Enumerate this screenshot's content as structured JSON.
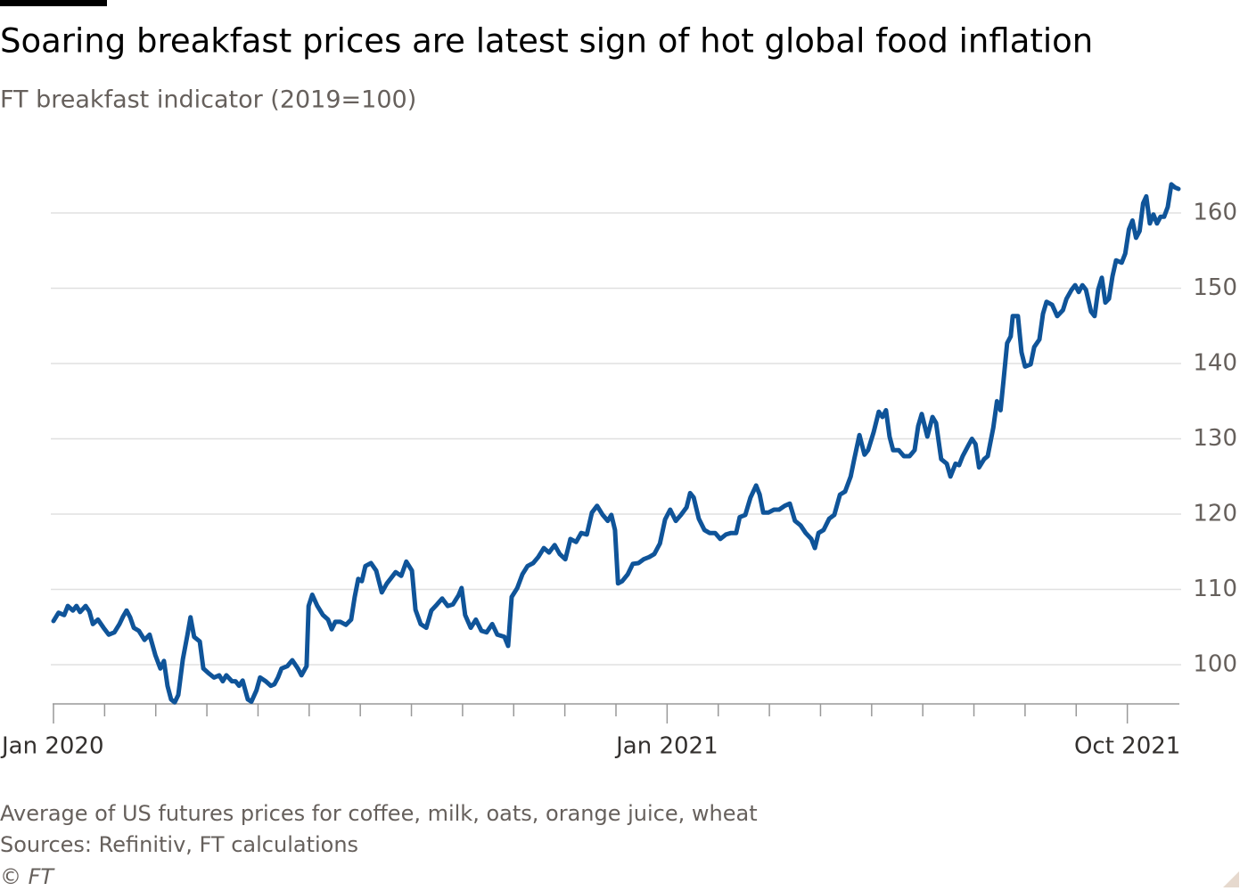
{
  "chart_data": {
    "type": "line",
    "title": "Soaring breakfast prices are latest sign of hot global food inflation",
    "subtitle": "FT breakfast indicator (2019=100)",
    "notes": [
      "Average of US futures prices for coffee, milk, oats, orange juice, wheat",
      "Sources: Refinitiv, FT calculations"
    ],
    "credit": "© FT",
    "color": "#0f5499",
    "grid": true,
    "ylim": [
      94.8,
      165
    ],
    "yticks": [
      100,
      110,
      120,
      130,
      140,
      150,
      160
    ],
    "xlim": [
      0,
      22
    ],
    "xticks": [
      {
        "value": 0,
        "label": "Jan 2020"
      },
      {
        "value": 1,
        "label": null
      },
      {
        "value": 2,
        "label": null
      },
      {
        "value": 3,
        "label": null
      },
      {
        "value": 4,
        "label": null
      },
      {
        "value": 5,
        "label": null
      },
      {
        "value": 6,
        "label": null
      },
      {
        "value": 7,
        "label": null
      },
      {
        "value": 8,
        "label": null
      },
      {
        "value": 9,
        "label": null
      },
      {
        "value": 10,
        "label": null
      },
      {
        "value": 11,
        "label": null
      },
      {
        "value": 12,
        "label": "Jan 2021"
      },
      {
        "value": 13,
        "label": null
      },
      {
        "value": 14,
        "label": null
      },
      {
        "value": 15,
        "label": null
      },
      {
        "value": 16,
        "label": null
      },
      {
        "value": 17,
        "label": null
      },
      {
        "value": 18,
        "label": null
      },
      {
        "value": 19,
        "label": null
      },
      {
        "value": 20,
        "label": null
      },
      {
        "value": 21,
        "label": "Oct 2021"
      }
    ],
    "x": [
      0,
      0.1,
      0.21,
      0.28,
      0.38,
      0.45,
      0.52,
      0.63,
      0.7,
      0.77,
      0.87,
      0.98,
      1.08,
      1.19,
      1.29,
      1.36,
      1.43,
      1.5,
      1.57,
      1.67,
      1.78,
      1.88,
      1.99,
      2.09,
      2.16,
      2.23,
      2.3,
      2.37,
      2.44,
      2.53,
      2.62,
      2.68,
      2.75,
      2.86,
      2.93,
      3.03,
      3.14,
      3.24,
      3.31,
      3.38,
      3.49,
      3.56,
      3.63,
      3.7,
      3.8,
      3.87,
      3.97,
      4.04,
      4.15,
      4.25,
      4.32,
      4.39,
      4.46,
      4.57,
      4.67,
      4.78,
      4.85,
      4.95,
      4.99,
      5.06,
      5.16,
      5.27,
      5.37,
      5.44,
      5.51,
      5.61,
      5.72,
      5.82,
      5.89,
      5.96,
      6.03,
      6.1,
      6.21,
      6.31,
      6.42,
      6.52,
      6.59,
      6.69,
      6.8,
      6.9,
      7.01,
      7.08,
      7.18,
      7.29,
      7.39,
      7.5,
      7.6,
      7.71,
      7.81,
      7.92,
      7.98,
      8.05,
      8.16,
      8.26,
      8.37,
      8.47,
      8.58,
      8.68,
      8.82,
      8.89,
      8.96,
      9.07,
      9.17,
      9.27,
      9.38,
      9.48,
      9.59,
      9.69,
      9.8,
      9.9,
      10.01,
      10.11,
      10.22,
      10.32,
      10.43,
      10.53,
      10.63,
      10.74,
      10.84,
      10.91,
      10.98,
      11.04,
      11.12,
      11.23,
      11.33,
      11.44,
      11.54,
      11.65,
      11.75,
      11.86,
      11.96,
      12.06,
      12.17,
      12.27,
      12.38,
      12.45,
      12.52,
      12.62,
      12.73,
      12.83,
      12.94,
      13.04,
      13.15,
      13.25,
      13.35,
      13.42,
      13.53,
      13.63,
      13.74,
      13.81,
      13.88,
      13.98,
      14.09,
      14.19,
      14.3,
      14.4,
      14.5,
      14.61,
      14.71,
      14.82,
      14.89,
      14.96,
      15.06,
      15.17,
      15.27,
      15.38,
      15.48,
      15.59,
      15.66,
      15.76,
      15.86,
      15.93,
      16.04,
      16.14,
      16.21,
      16.28,
      16.35,
      16.42,
      16.53,
      16.63,
      16.74,
      16.84,
      16.91,
      16.98,
      17.09,
      17.19,
      17.26,
      17.36,
      17.47,
      17.54,
      17.64,
      17.71,
      17.78,
      17.89,
      17.96,
      18.03,
      18.1,
      18.2,
      18.27,
      18.38,
      18.45,
      18.52,
      18.58,
      18.65,
      18.72,
      18.76,
      18.86,
      18.93,
      19.0,
      19.11,
      19.18,
      19.28,
      19.35,
      19.42,
      19.53,
      19.63,
      19.74,
      19.81,
      19.91,
      19.98,
      20.05,
      20.12,
      20.19,
      20.29,
      20.36,
      20.43,
      20.5,
      20.57,
      20.64,
      20.71,
      20.78,
      20.89,
      20.96,
      21.03,
      21.1,
      21.17,
      21.24,
      21.31,
      21.37,
      21.44,
      21.51,
      21.58,
      21.65,
      21.72,
      21.79,
      21.86,
      21.93,
      22.0
    ],
    "values": [
      105.8,
      106.9,
      106.6,
      107.8,
      107.2,
      107.8,
      107.0,
      107.8,
      107.1,
      105.4,
      106.0,
      104.9,
      104.0,
      104.3,
      105.4,
      106.4,
      107.2,
      106.3,
      104.9,
      104.5,
      103.3,
      104.0,
      101.3,
      99.5,
      100.5,
      97.2,
      95.4,
      95.0,
      96.0,
      100.7,
      104.0,
      106.3,
      103.7,
      103.1,
      99.5,
      98.9,
      98.3,
      98.6,
      97.8,
      98.6,
      97.8,
      97.8,
      97.2,
      97.9,
      95.4,
      95.1,
      96.6,
      98.3,
      97.8,
      97.2,
      97.4,
      98.3,
      99.5,
      99.8,
      100.6,
      99.5,
      98.6,
      99.8,
      107.8,
      109.3,
      107.8,
      106.6,
      106.0,
      104.7,
      105.7,
      105.7,
      105.3,
      106.0,
      109.0,
      111.4,
      111.1,
      113.1,
      113.5,
      112.5,
      109.6,
      110.8,
      111.4,
      112.3,
      111.8,
      113.7,
      112.5,
      107.3,
      105.4,
      104.9,
      107.2,
      108.0,
      108.8,
      107.8,
      108.0,
      109.2,
      110.2,
      106.6,
      104.9,
      106.0,
      104.5,
      104.3,
      105.4,
      104.0,
      103.7,
      102.5,
      109.0,
      110.2,
      112.0,
      113.1,
      113.5,
      114.3,
      115.5,
      114.9,
      115.9,
      114.7,
      114.0,
      116.7,
      116.3,
      117.5,
      117.3,
      120.2,
      121.1,
      119.9,
      119.1,
      119.9,
      117.9,
      110.8,
      111.1,
      112.0,
      113.4,
      113.5,
      114.0,
      114.3,
      114.7,
      116.1,
      119.3,
      120.6,
      119.1,
      119.9,
      120.9,
      122.8,
      122.2,
      119.4,
      117.9,
      117.5,
      117.5,
      116.7,
      117.3,
      117.5,
      117.5,
      119.6,
      119.9,
      122.2,
      123.8,
      122.6,
      120.2,
      120.2,
      120.6,
      120.6,
      121.1,
      121.4,
      119.1,
      118.5,
      117.5,
      116.7,
      115.5,
      117.5,
      117.9,
      119.4,
      119.9,
      122.6,
      123.0,
      125.0,
      127.3,
      130.5,
      127.9,
      128.5,
      130.9,
      133.6,
      132.9,
      133.8,
      130.3,
      128.5,
      128.5,
      127.7,
      127.7,
      128.5,
      131.7,
      133.3,
      130.3,
      132.9,
      132.1,
      127.3,
      126.7,
      125.0,
      126.7,
      126.5,
      127.7,
      129.1,
      130.0,
      129.3,
      126.2,
      127.3,
      127.7,
      131.5,
      135.0,
      133.8,
      137.8,
      142.7,
      143.6,
      146.3,
      146.3,
      141.5,
      139.6,
      139.9,
      142.2,
      143.2,
      146.6,
      148.2,
      147.8,
      146.3,
      147.1,
      148.6,
      149.8,
      150.4,
      149.5,
      150.4,
      149.8,
      146.9,
      146.3,
      149.8,
      151.4,
      148.1,
      148.6,
      151.6,
      153.7,
      153.4,
      154.6,
      157.8,
      159.0,
      156.7,
      157.6,
      161.3,
      162.2,
      158.6,
      159.8,
      158.6,
      159.5,
      159.5,
      160.8,
      163.8,
      163.4,
      163.2
    ]
  }
}
